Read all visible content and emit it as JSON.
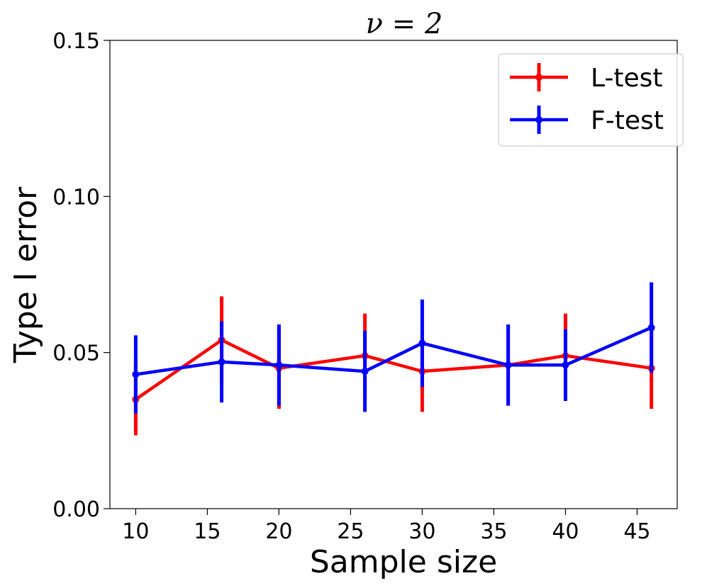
{
  "chart_data": {
    "type": "line",
    "title": "ν = 2",
    "xlabel": "Sample size",
    "ylabel": "Type I error",
    "xlim": [
      8.2,
      47.8
    ],
    "ylim": [
      0.0,
      0.15
    ],
    "x_ticks": [
      10,
      15,
      20,
      25,
      30,
      35,
      40,
      45
    ],
    "x_tick_labels": [
      "10",
      "15",
      "20",
      "25",
      "30",
      "35",
      "40",
      "45"
    ],
    "y_ticks": [
      0.0,
      0.05,
      0.1,
      0.15
    ],
    "y_tick_labels": [
      "0.00",
      "0.05",
      "0.10",
      "0.15"
    ],
    "grid": false,
    "legend_position": "top-right",
    "error_bars": true,
    "series": [
      {
        "name": "L-test",
        "color": "#ff0000",
        "x": [
          10,
          16,
          20,
          26,
          30,
          36,
          40,
          46
        ],
        "y": [
          0.035,
          0.054,
          0.045,
          0.049,
          0.044,
          0.046,
          0.049,
          0.045
        ],
        "err": [
          0.0115,
          0.014,
          0.013,
          0.0135,
          0.013,
          0.013,
          0.0135,
          0.013
        ]
      },
      {
        "name": "F-test",
        "color": "#0000ff",
        "x": [
          10,
          16,
          20,
          26,
          30,
          36,
          40,
          46
        ],
        "y": [
          0.043,
          0.047,
          0.046,
          0.044,
          0.053,
          0.046,
          0.046,
          0.058
        ],
        "err": [
          0.0125,
          0.013,
          0.013,
          0.013,
          0.014,
          0.013,
          0.0115,
          0.0145
        ]
      }
    ]
  }
}
